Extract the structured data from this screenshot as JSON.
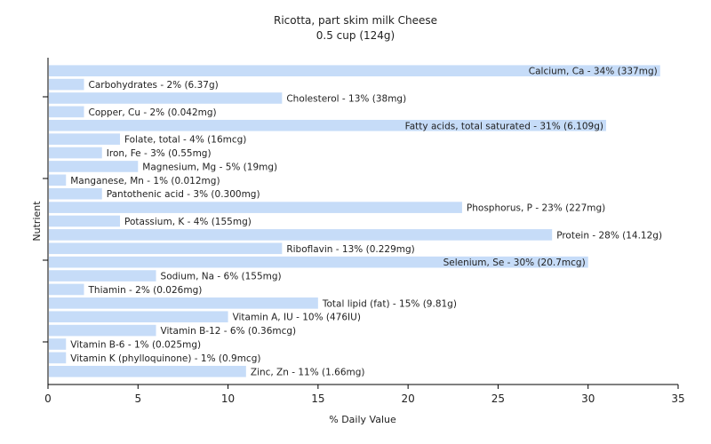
{
  "chart_data": {
    "type": "bar",
    "orientation": "horizontal",
    "title": "Ricotta, part skim milk Cheese",
    "subtitle": "0.5 cup (124g)",
    "xlabel": "% Daily Value",
    "ylabel": "Nutrient",
    "xlim": [
      0,
      35
    ],
    "xticks": [
      "0",
      "5",
      "10",
      "15",
      "20",
      "25",
      "30",
      "35"
    ],
    "grid": false,
    "bar_color": "#c6dcf8",
    "categories": [
      "Calcium, Ca",
      "Carbohydrates",
      "Cholesterol",
      "Copper, Cu",
      "Fatty acids, total saturated",
      "Folate, total",
      "Iron, Fe",
      "Magnesium, Mg",
      "Manganese, Mn",
      "Pantothenic acid",
      "Phosphorus, P",
      "Potassium, K",
      "Protein",
      "Riboflavin",
      "Selenium, Se",
      "Sodium, Na",
      "Thiamin",
      "Total lipid (fat)",
      "Vitamin A, IU",
      "Vitamin B-12",
      "Vitamin B-6",
      "Vitamin K (phylloquinone)",
      "Zinc, Zn"
    ],
    "values": [
      34,
      2,
      13,
      2,
      31,
      4,
      3,
      5,
      1,
      3,
      23,
      4,
      28,
      13,
      30,
      6,
      2,
      15,
      10,
      6,
      1,
      1,
      11
    ],
    "labels": [
      "Calcium, Ca - 34% (337mg)",
      "Carbohydrates - 2% (6.37g)",
      "Cholesterol - 13% (38mg)",
      "Copper, Cu - 2% (0.042mg)",
      "Fatty acids, total saturated - 31% (6.109g)",
      "Folate, total - 4% (16mcg)",
      "Iron, Fe - 3% (0.55mg)",
      "Magnesium, Mg - 5% (19mg)",
      "Manganese, Mn - 1% (0.012mg)",
      "Pantothenic acid - 3% (0.300mg)",
      "Phosphorus, P - 23% (227mg)",
      "Potassium, K - 4% (155mg)",
      "Protein - 28% (14.12g)",
      "Riboflavin - 13% (0.229mg)",
      "Selenium, Se - 30% (20.7mcg)",
      "Sodium, Na - 6% (155mg)",
      "Thiamin - 2% (0.026mg)",
      "Total lipid (fat) - 15% (9.81g)",
      "Vitamin A, IU - 10% (476IU)",
      "Vitamin B-12 - 6% (0.36mcg)",
      "Vitamin B-6 - 1% (0.025mg)",
      "Vitamin K (phylloquinone) - 1% (0.9mcg)",
      "Zinc, Zn - 11% (1.66mg)"
    ]
  }
}
